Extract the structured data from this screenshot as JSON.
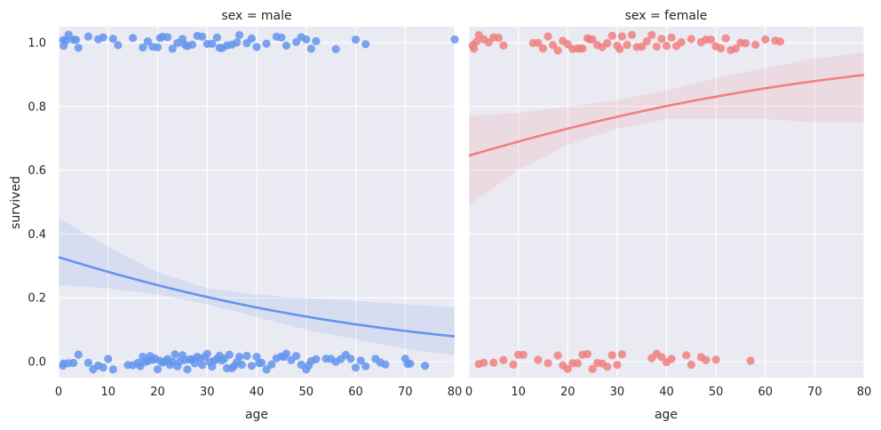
{
  "chart_data": {
    "type": "scatter",
    "ylabel": "survived",
    "xlabel": "age",
    "xlim": [
      0,
      80
    ],
    "ylim": [
      -0.05,
      1.05
    ],
    "xticks": [
      "0",
      "10",
      "20",
      "30",
      "40",
      "50",
      "60",
      "70",
      "80"
    ],
    "yticks": [
      "0.0",
      "0.2",
      "0.4",
      "0.6",
      "0.8",
      "1.0"
    ],
    "background": "#EAEAF2",
    "facets": [
      {
        "title": "sex = male",
        "color": "#6495ED",
        "fit": {
          "intercept": -0.72,
          "slope": -0.0217
        },
        "ci_band": {
          "x": [
            0,
            10,
            20,
            30,
            40,
            50,
            60,
            70,
            80
          ],
          "lower": [
            0.24,
            0.23,
            0.21,
            0.18,
            0.14,
            0.1,
            0.07,
            0.04,
            0.02
          ],
          "upper": [
            0.45,
            0.36,
            0.28,
            0.23,
            0.21,
            0.2,
            0.19,
            0.18,
            0.17
          ]
        },
        "survived_ages": [
          0.9,
          1,
          1.5,
          2,
          3,
          3.5,
          4,
          6,
          8,
          9,
          11,
          12,
          15,
          17,
          18,
          19,
          20,
          20.5,
          21,
          22,
          23,
          24,
          25,
          25.5,
          26,
          27,
          28,
          29,
          30,
          31,
          32,
          32.5,
          33,
          34,
          35,
          36,
          36.5,
          38,
          39,
          40,
          42,
          44,
          45,
          46,
          48,
          49,
          50,
          51,
          52,
          56,
          60,
          62,
          80
        ],
        "died_ages": [
          0.9,
          1,
          2,
          3,
          4,
          6,
          7,
          8,
          9,
          10,
          11,
          14,
          15,
          16,
          16.5,
          17,
          17.5,
          18,
          18.5,
          19,
          19.5,
          20,
          20.5,
          21,
          21.5,
          22,
          22.5,
          23,
          23.5,
          24,
          24.5,
          25,
          25.5,
          26,
          26.5,
          27,
          27.5,
          28,
          28.5,
          29,
          29.5,
          30,
          30.5,
          31,
          31.5,
          32,
          32.5,
          33,
          33.5,
          34,
          34.5,
          35,
          35.5,
          36,
          36.5,
          37,
          38,
          39,
          40,
          40.5,
          41,
          42,
          43,
          44,
          45,
          45.5,
          46,
          47,
          48,
          49,
          50,
          50.5,
          51,
          52,
          54,
          55,
          56,
          57,
          58,
          59,
          60,
          61,
          62,
          64,
          65,
          66,
          70,
          70.5,
          71,
          74
        ]
      },
      {
        "title": "sex = female",
        "color": "#F08080",
        "fit": {
          "intercept": 0.6,
          "slope": 0.0198
        },
        "ci_band": {
          "x": [
            0,
            10,
            20,
            30,
            40,
            50,
            60,
            70,
            80
          ],
          "lower": [
            0.49,
            0.6,
            0.68,
            0.73,
            0.76,
            0.76,
            0.76,
            0.75,
            0.75
          ],
          "upper": [
            0.77,
            0.78,
            0.8,
            0.82,
            0.85,
            0.89,
            0.92,
            0.95,
            0.97
          ]
        },
        "survived_ages": [
          0.75,
          1,
          1.5,
          2,
          3,
          4,
          5,
          6,
          7,
          13,
          14,
          15,
          16,
          17,
          18,
          19,
          20,
          21,
          22,
          22.5,
          23,
          24,
          24.5,
          25,
          26,
          27,
          28,
          29,
          30,
          30.5,
          31,
          32,
          33,
          34,
          35,
          36,
          37,
          38,
          39,
          40,
          41,
          42,
          43,
          45,
          47,
          48,
          49,
          50,
          51,
          52,
          53,
          54,
          55,
          56,
          58,
          60,
          62,
          63
        ],
        "died_ages": [
          2,
          3,
          5,
          7,
          9,
          10,
          11,
          14,
          16,
          18,
          19,
          20,
          21,
          22,
          23,
          24,
          25,
          26,
          27,
          28,
          29,
          30,
          31,
          37,
          38,
          39,
          40,
          41,
          44,
          45,
          47,
          48,
          50,
          57
        ]
      }
    ]
  }
}
